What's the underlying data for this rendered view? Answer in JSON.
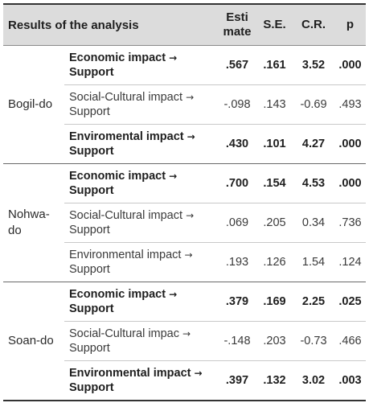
{
  "header": {
    "title": "Results of the analysis",
    "col_estimate_line1": "Esti",
    "col_estimate_line2": "mate",
    "col_se": "S.E.",
    "col_cr": "C.R.",
    "col_p": "p"
  },
  "groups": [
    {
      "region": "Bogil-do",
      "rows": [
        {
          "effect": "Economic impact",
          "arrow": "→",
          "target": "Support",
          "estimate": ".567",
          "se": ".161",
          "cr": "3.52",
          "p": ".000",
          "significant": true
        },
        {
          "effect": "Social-Cultural impact",
          "arrow": "→",
          "target": "Support",
          "estimate": "-.098",
          "se": ".143",
          "cr": "-0.69",
          "p": ".493",
          "significant": false
        },
        {
          "effect": "Enviromental impact",
          "arrow": "→",
          "target": "Support",
          "estimate": ".430",
          "se": ".101",
          "cr": "4.27",
          "p": ".000",
          "significant": true
        }
      ]
    },
    {
      "region_line1": "Nohwa-",
      "region_line2": "do",
      "rows": [
        {
          "effect": "Economic impact",
          "arrow": "→",
          "target": "Support",
          "estimate": ".700",
          "se": ".154",
          "cr": "4.53",
          "p": ".000",
          "significant": true
        },
        {
          "effect": "Social-Cultural impact",
          "arrow": "→",
          "target": "Support",
          "estimate": ".069",
          "se": ".205",
          "cr": "0.34",
          "p": ".736",
          "significant": false
        },
        {
          "effect": "Environmental impact",
          "arrow": "→",
          "target": "Support",
          "estimate": ".193",
          "se": ".126",
          "cr": "1.54",
          "p": ".124",
          "significant": false
        }
      ]
    },
    {
      "region": "Soan-do",
      "rows": [
        {
          "effect": "Economic impact",
          "arrow": "→",
          "target": "Support",
          "estimate": ".379",
          "se": ".169",
          "cr": "2.25",
          "p": ".025",
          "significant": true
        },
        {
          "effect": "Social-Cultural impac",
          "arrow": "→",
          "target": "Support",
          "estimate": "-.148",
          "se": ".203",
          "cr": "-0.73",
          "p": ".466",
          "significant": false
        },
        {
          "effect": "Environmental impact",
          "arrow": "→",
          "target": "Support",
          "estimate": ".397",
          "se": ".132",
          "cr": "3.02",
          "p": ".003",
          "significant": true
        }
      ]
    }
  ],
  "colors": {
    "header_bg": "#dcdcdc",
    "text": "#2a2a2a",
    "rule": "#333333"
  }
}
